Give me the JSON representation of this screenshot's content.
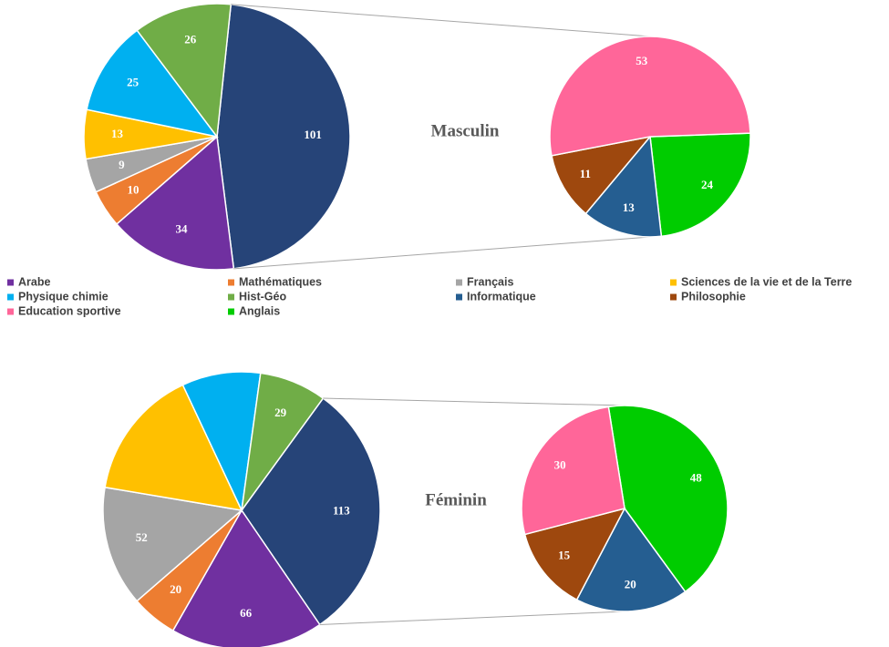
{
  "legend": {
    "categories": [
      "Arabe",
      "Mathématiques",
      "Français",
      "Sciences de la vie et de la Terre",
      "Physique chimie",
      "Hist-Géo",
      "Informatique",
      "Philosophie",
      "Education sportive",
      "Anglais"
    ],
    "colors": [
      "#7030a0",
      "#ed7d31",
      "#a5a5a5",
      "#ffc000",
      "#00b0f0",
      "#70ad47",
      "#255e91",
      "#9e480e",
      "#ff6699",
      "#00cc00"
    ]
  },
  "chart_data": [
    {
      "type": "pie_of_pie",
      "title": "Masculin",
      "values": [
        34,
        10,
        9,
        13,
        25,
        26,
        13,
        11,
        53,
        24
      ],
      "value_labels": [
        "34",
        "10",
        "9",
        "13",
        "25",
        "26",
        "13",
        "11",
        "53",
        "24"
      ],
      "other_value": 101,
      "other_color": "#264478"
    },
    {
      "type": "pie_of_pie",
      "title": "Féminin",
      "values": [
        66,
        20,
        52,
        57,
        34,
        29,
        20,
        15,
        30,
        48
      ],
      "value_labels": [
        "66",
        "20",
        "52",
        null,
        null,
        "29",
        "20",
        "15",
        "30",
        "48"
      ],
      "other_value": 113,
      "other_color": "#264478"
    }
  ]
}
